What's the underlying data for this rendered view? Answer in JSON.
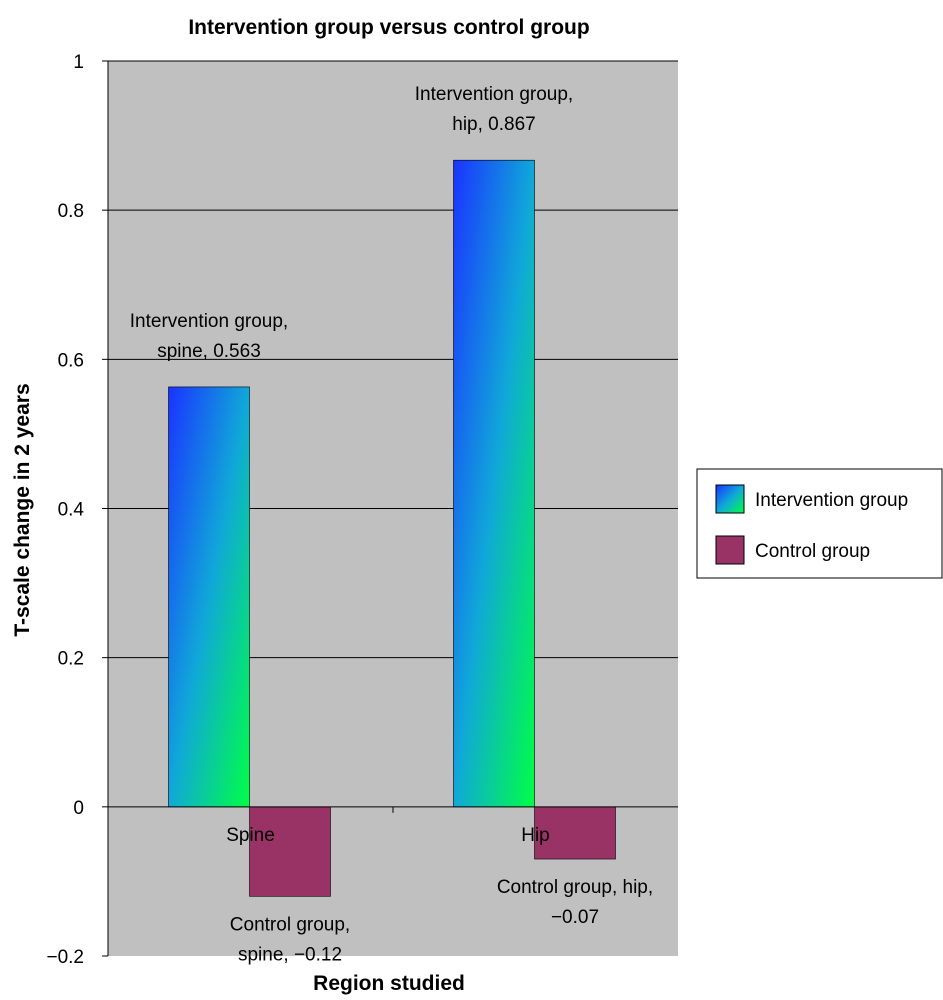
{
  "chart_data": {
    "type": "bar",
    "title": "Intervention group versus control group",
    "xlabel": "Region studied",
    "ylabel": "T-scale change in 2 years",
    "categories": [
      "Spine",
      "Hip"
    ],
    "series": [
      {
        "name": "Intervention group",
        "values": [
          0.563,
          0.867
        ],
        "color": "#1a3cff",
        "data_labels": [
          [
            "Intervention group,",
            "spine, 0.563"
          ],
          [
            "Intervention group,",
            "hip, 0.867"
          ]
        ]
      },
      {
        "name": "Control group",
        "values": [
          -0.12,
          -0.07
        ],
        "color": "#993366",
        "data_labels": [
          [
            "Control group,",
            "spine, −0.12"
          ],
          [
            "Control group, hip,",
            "−0.07"
          ]
        ]
      }
    ],
    "ylim": [
      -0.2,
      1
    ],
    "yticks": [
      -0.2,
      0,
      0.2,
      0.4,
      0.6,
      0.8,
      1
    ],
    "ytick_labels": [
      "−0.2",
      "0",
      "0.2",
      "0.4",
      "0.6",
      "0.8",
      "1"
    ],
    "grid": true,
    "legend_position": "right",
    "plot_background": "#c0c0c0"
  }
}
